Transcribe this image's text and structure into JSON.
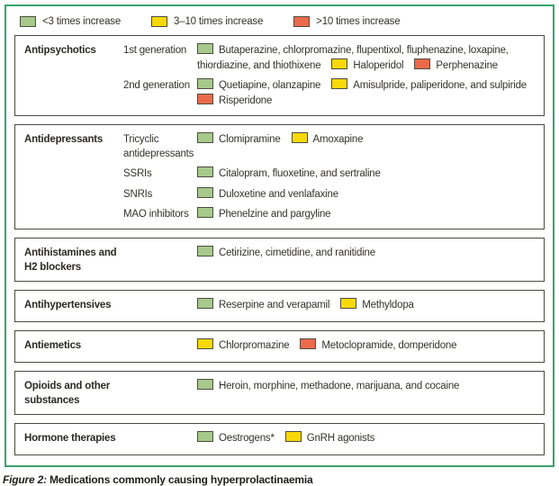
{
  "colors": {
    "green": "#a7c98b",
    "yellow": "#f8d908",
    "red": "#ec6a4c",
    "swatch_border": "#4d4c41",
    "frame_border": "#3ba26b",
    "box_border": "#4a4942"
  },
  "legend": [
    {
      "color": "green",
      "label": "<3 times increase"
    },
    {
      "color": "yellow",
      "label": "3–10 times increase"
    },
    {
      "color": "red",
      "label": ">10 times increase"
    }
  ],
  "sections": [
    {
      "category": "Antipsychotics",
      "rows": [
        {
          "subcategory": "1st generation",
          "items": [
            {
              "color": "green",
              "text": "Butaperazine, chlorpromazine, flupentixol, fluphenazine, loxapine, thiordiazine, and thiothixene"
            },
            {
              "color": "yellow",
              "text": "Haloperidol"
            },
            {
              "color": "red",
              "text": "Perphenazine"
            }
          ]
        },
        {
          "subcategory": "2nd generation",
          "items": [
            {
              "color": "green",
              "text": "Quetiapine, olanzapine"
            },
            {
              "color": "yellow",
              "text": "Amisulpride, paliperidone, and sulpiride"
            },
            {
              "color": "red",
              "text": "Risperidone"
            }
          ]
        }
      ]
    },
    {
      "category": "Antidepressants",
      "rows": [
        {
          "subcategory": "Tricyclic antidepressants",
          "items": [
            {
              "color": "green",
              "text": "Clomipramine"
            },
            {
              "color": "yellow",
              "text": "Amoxapine"
            }
          ]
        },
        {
          "subcategory": "SSRIs",
          "items": [
            {
              "color": "green",
              "text": "Citalopram, fluoxetine, and sertraline"
            }
          ]
        },
        {
          "subcategory": "SNRIs",
          "items": [
            {
              "color": "green",
              "text": "Duloxetine and venlafaxine"
            }
          ]
        },
        {
          "subcategory": "MAO inhibitors",
          "items": [
            {
              "color": "green",
              "text": "Phenelzine and pargyline"
            }
          ]
        }
      ]
    },
    {
      "category": "Antihistamines and H2 blockers",
      "rows": [
        {
          "subcategory": "",
          "items": [
            {
              "color": "green",
              "text": "Cetirizine, cimetidine, and ranitidine"
            }
          ]
        }
      ]
    },
    {
      "category": "Antihypertensives",
      "rows": [
        {
          "subcategory": "",
          "items": [
            {
              "color": "green",
              "text": "Reserpine and verapamil"
            },
            {
              "color": "yellow",
              "text": "Methyldopa"
            }
          ]
        }
      ]
    },
    {
      "category": "Antiemetics",
      "rows": [
        {
          "subcategory": "",
          "items": [
            {
              "color": "yellow",
              "text": "Chlorpromazine"
            },
            {
              "color": "red",
              "text": "Metoclopramide, domperidone"
            }
          ]
        }
      ]
    },
    {
      "category": "Opioids and other substances",
      "rows": [
        {
          "subcategory": "",
          "items": [
            {
              "color": "green",
              "text": "Heroin, morphine, methadone, marijuana, and cocaine"
            }
          ]
        }
      ]
    },
    {
      "category": "Hormone therapies",
      "rows": [
        {
          "subcategory": "",
          "items": [
            {
              "color": "green",
              "text": "Oestrogens*"
            },
            {
              "color": "yellow",
              "text": "GnRH agonists"
            }
          ]
        }
      ]
    }
  ],
  "caption": {
    "prefix": "Figure 2:",
    "text": "Medications commonly causing hyperprolactinaemia"
  }
}
